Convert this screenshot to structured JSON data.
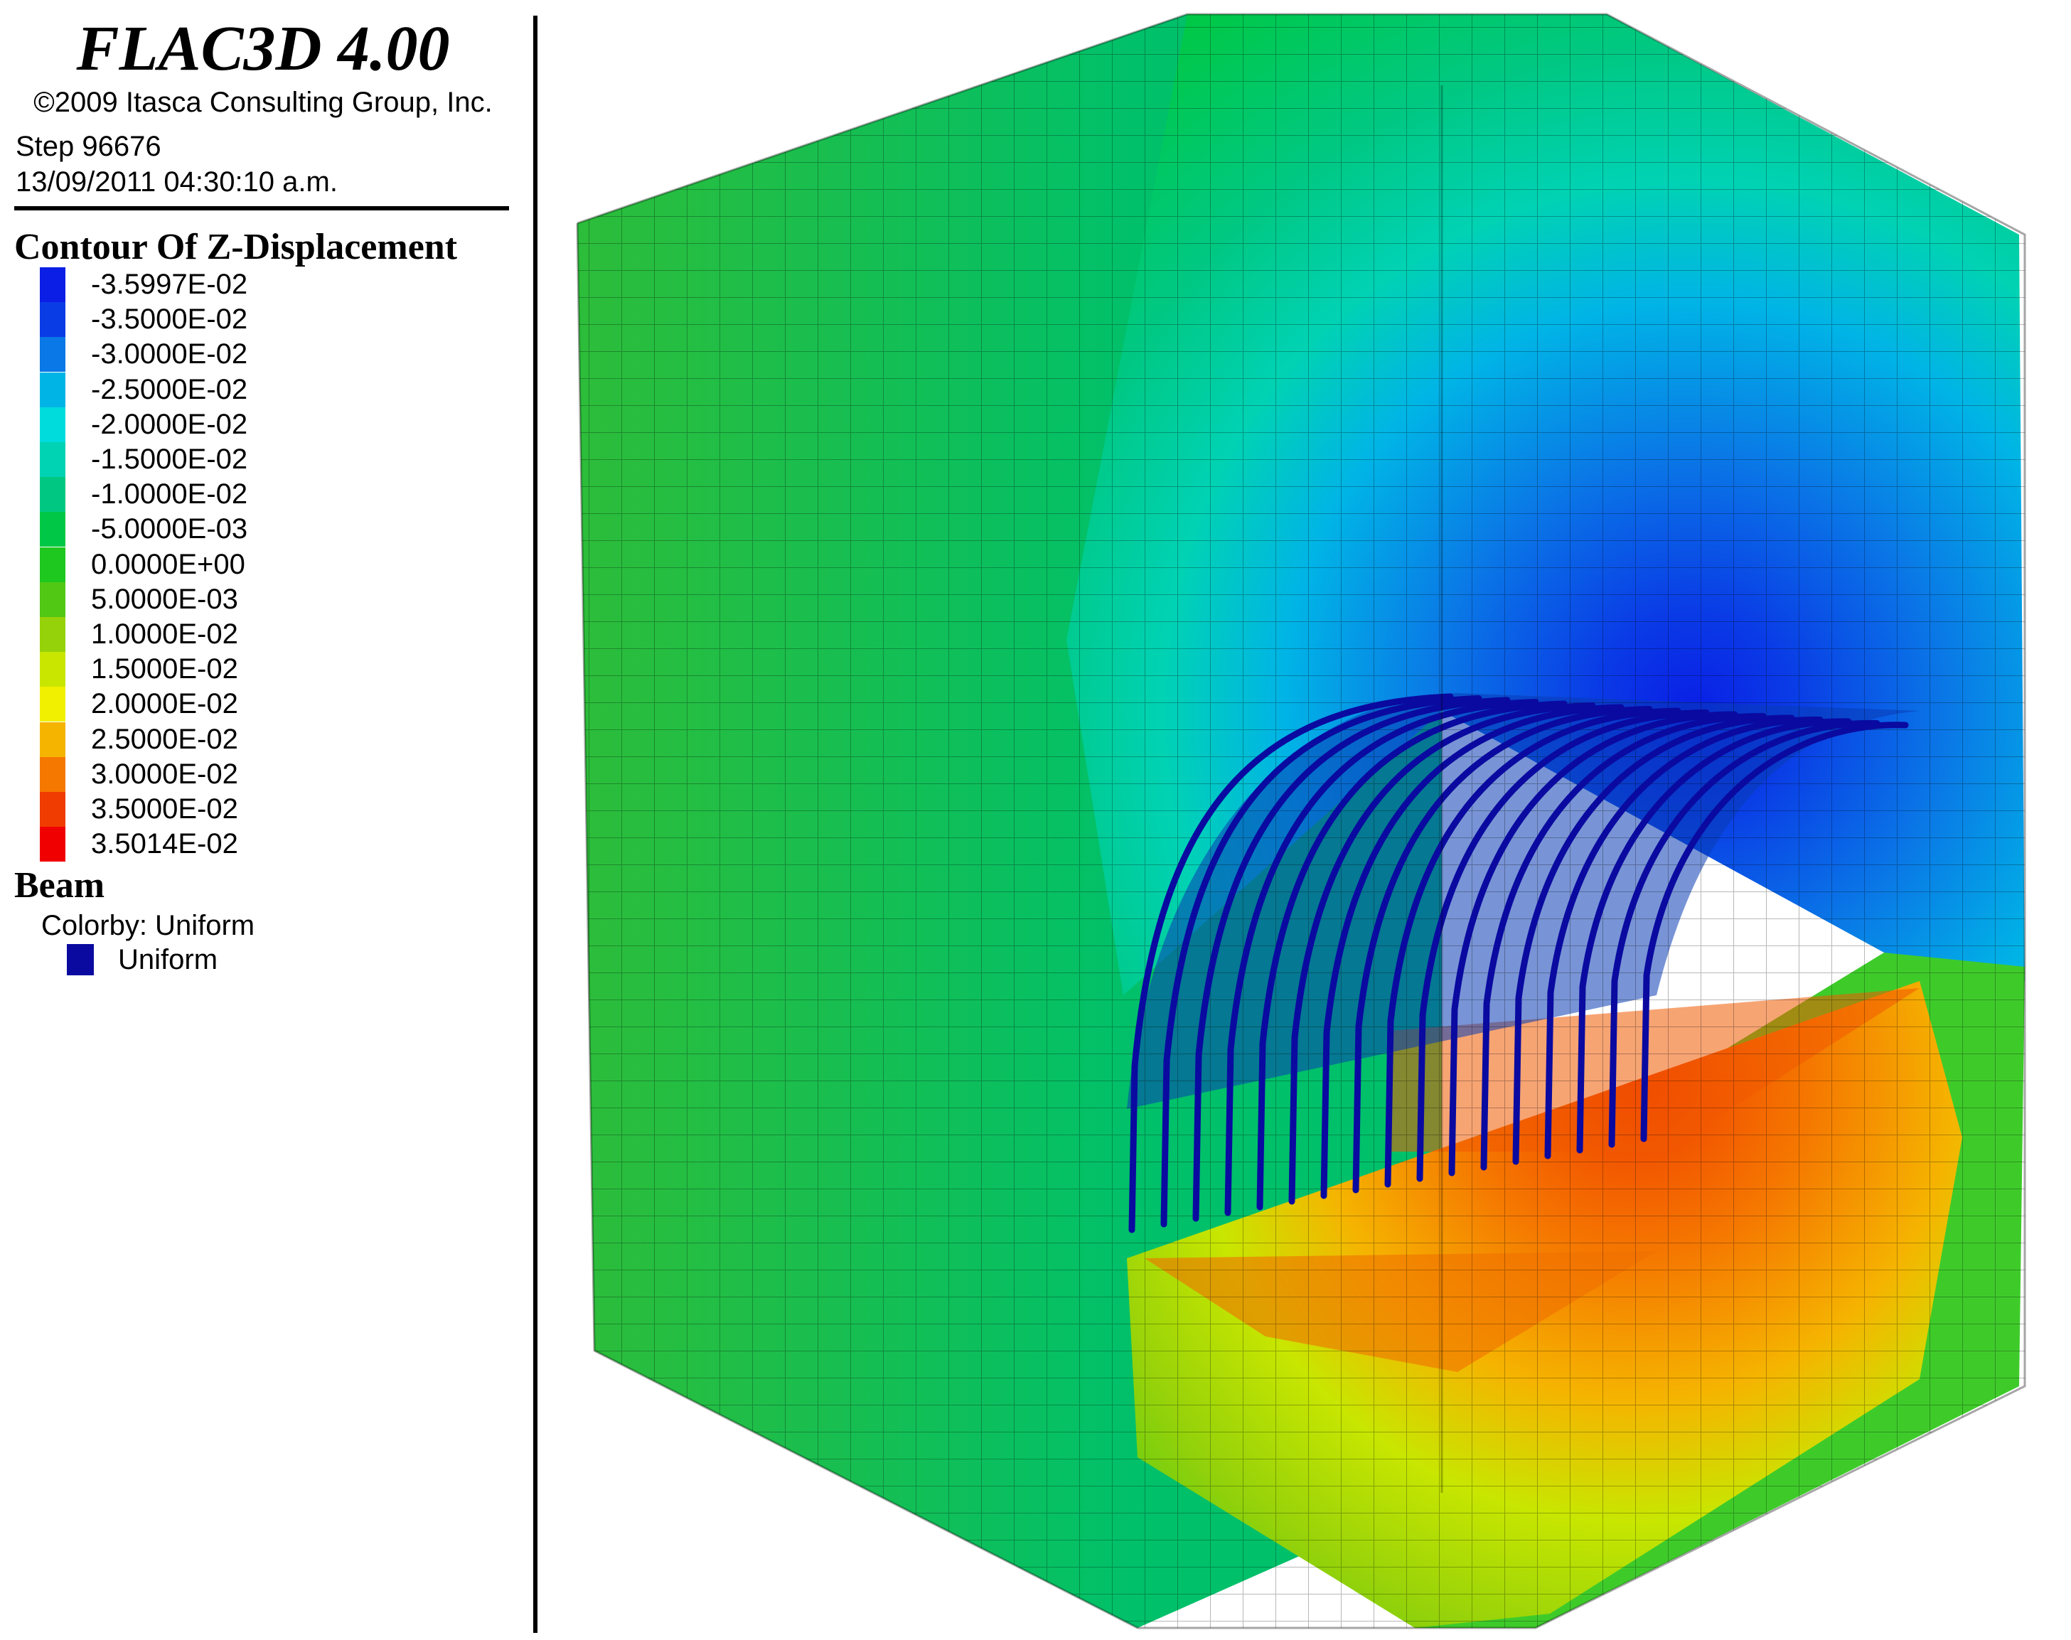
{
  "header": {
    "title": "FLAC3D 4.00",
    "copyright": "©2009 Itasca Consulting Group, Inc.",
    "step": "Step 96676",
    "timestamp": "13/09/2011 04:30:10 a.m."
  },
  "contour": {
    "heading": "Contour Of Z-Displacement",
    "levels": [
      {
        "label": "-3.5997E-02",
        "color": "#0a1ee6"
      },
      {
        "label": "-3.5000E-02",
        "color": "#0a3ce6"
      },
      {
        "label": "-3.0000E-02",
        "color": "#0a78e6"
      },
      {
        "label": "-2.5000E-02",
        "color": "#00b4e6"
      },
      {
        "label": "-2.0000E-02",
        "color": "#00dcdc"
      },
      {
        "label": "-1.5000E-02",
        "color": "#00d2b4"
      },
      {
        "label": "-1.0000E-02",
        "color": "#00c882"
      },
      {
        "label": "-5.0000E-03",
        "color": "#00c846"
      },
      {
        "label": "0.0000E+00",
        "color": "#1ec81e"
      },
      {
        "label": "5.0000E-03",
        "color": "#50c814"
      },
      {
        "label": "1.0000E-02",
        "color": "#96d20a"
      },
      {
        "label": "1.5000E-02",
        "color": "#c8e600"
      },
      {
        "label": "2.0000E-02",
        "color": "#f0f000"
      },
      {
        "label": "2.5000E-02",
        "color": "#f5b400"
      },
      {
        "label": "3.0000E-02",
        "color": "#f57800"
      },
      {
        "label": "3.5000E-02",
        "color": "#f03c00"
      },
      {
        "label": "3.5014E-02",
        "color": "#f00000"
      }
    ]
  },
  "beam": {
    "heading": "Beam",
    "colorby": "Colorby: Uniform",
    "swatch_label": "Uniform",
    "color": "#0a0aa0"
  }
}
